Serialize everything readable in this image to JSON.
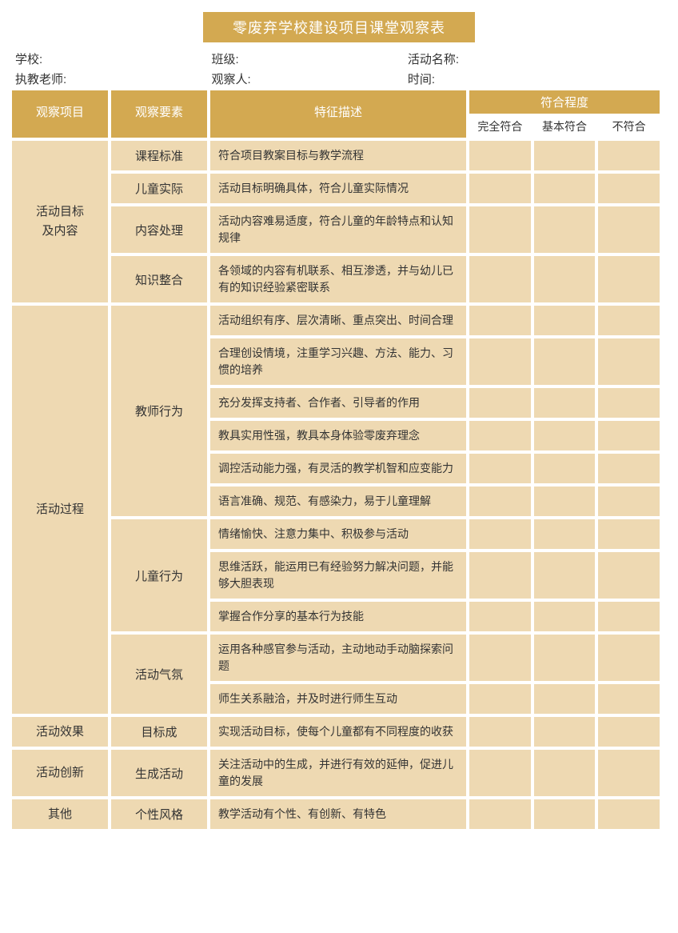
{
  "title": "零废弃学校建设项目课堂观察表",
  "info": {
    "row1": {
      "school_label": "学校:",
      "class_label": "班级:",
      "activity_label": "活动名称:"
    },
    "row2": {
      "teacher_label": "执教老师:",
      "observer_label": "观察人:",
      "time_label": "时间:"
    }
  },
  "headers": {
    "col1": "观察项目",
    "col2": "观察要素",
    "col3": "特征描述",
    "compliance": "符合程度",
    "sub1": "完全符合",
    "sub2": "基本符合",
    "sub3": "不符合"
  },
  "sections": [
    {
      "category": "活动目标\n及内容",
      "elements": [
        {
          "name": "课程标准",
          "descs": [
            "符合项目教案目标与教学流程"
          ]
        },
        {
          "name": "儿童实际",
          "descs": [
            "活动目标明确具体，符合儿童实际情况"
          ]
        },
        {
          "name": "内容处理",
          "descs": [
            "活动内容难易适度，符合儿童的年龄特点和认知规律"
          ]
        },
        {
          "name": "知识整合",
          "descs": [
            "各领域的内容有机联系、相互渗透，并与幼儿已有的知识经验紧密联系"
          ]
        }
      ]
    },
    {
      "category": "活动过程",
      "elements": [
        {
          "name": "教师行为",
          "descs": [
            "活动组织有序、层次清晰、重点突出、时间合理",
            "合理创设情境，注重学习兴趣、方法、能力、习惯的培养",
            "充分发挥支持者、合作者、引导者的作用",
            "教具实用性强，教具本身体验零废弃理念",
            "调控活动能力强，有灵活的教学机智和应变能力",
            "语言准确、规范、有感染力，易于儿童理解"
          ]
        },
        {
          "name": "儿童行为",
          "descs": [
            "情绪愉快、注意力集中、积极参与活动",
            "思维活跃，能运用已有经验努力解决问题，并能够大胆表现",
            "掌握合作分享的基本行为技能"
          ]
        },
        {
          "name": "活动气氛",
          "descs": [
            "运用各种感官参与活动，主动地动手动脑探索问题",
            "师生关系融洽，并及时进行师生互动"
          ]
        }
      ]
    },
    {
      "category": "活动效果",
      "elements": [
        {
          "name": "目标成",
          "descs": [
            "实现活动目标，使每个儿童都有不同程度的收获"
          ]
        }
      ]
    },
    {
      "category": "活动创新",
      "elements": [
        {
          "name": "生成活动",
          "descs": [
            "关注活动中的生成，并进行有效的延伸，促进儿童的发展"
          ]
        }
      ]
    },
    {
      "category": "其他",
      "elements": [
        {
          "name": "个性风格",
          "descs": [
            "教学活动有个性、有创新、有特色"
          ]
        }
      ]
    }
  ],
  "colors": {
    "header_bg": "#d3a951",
    "header_text": "#ffffff",
    "cell_bg": "#eed9b2",
    "text": "#333333",
    "page_bg": "#ffffff"
  }
}
